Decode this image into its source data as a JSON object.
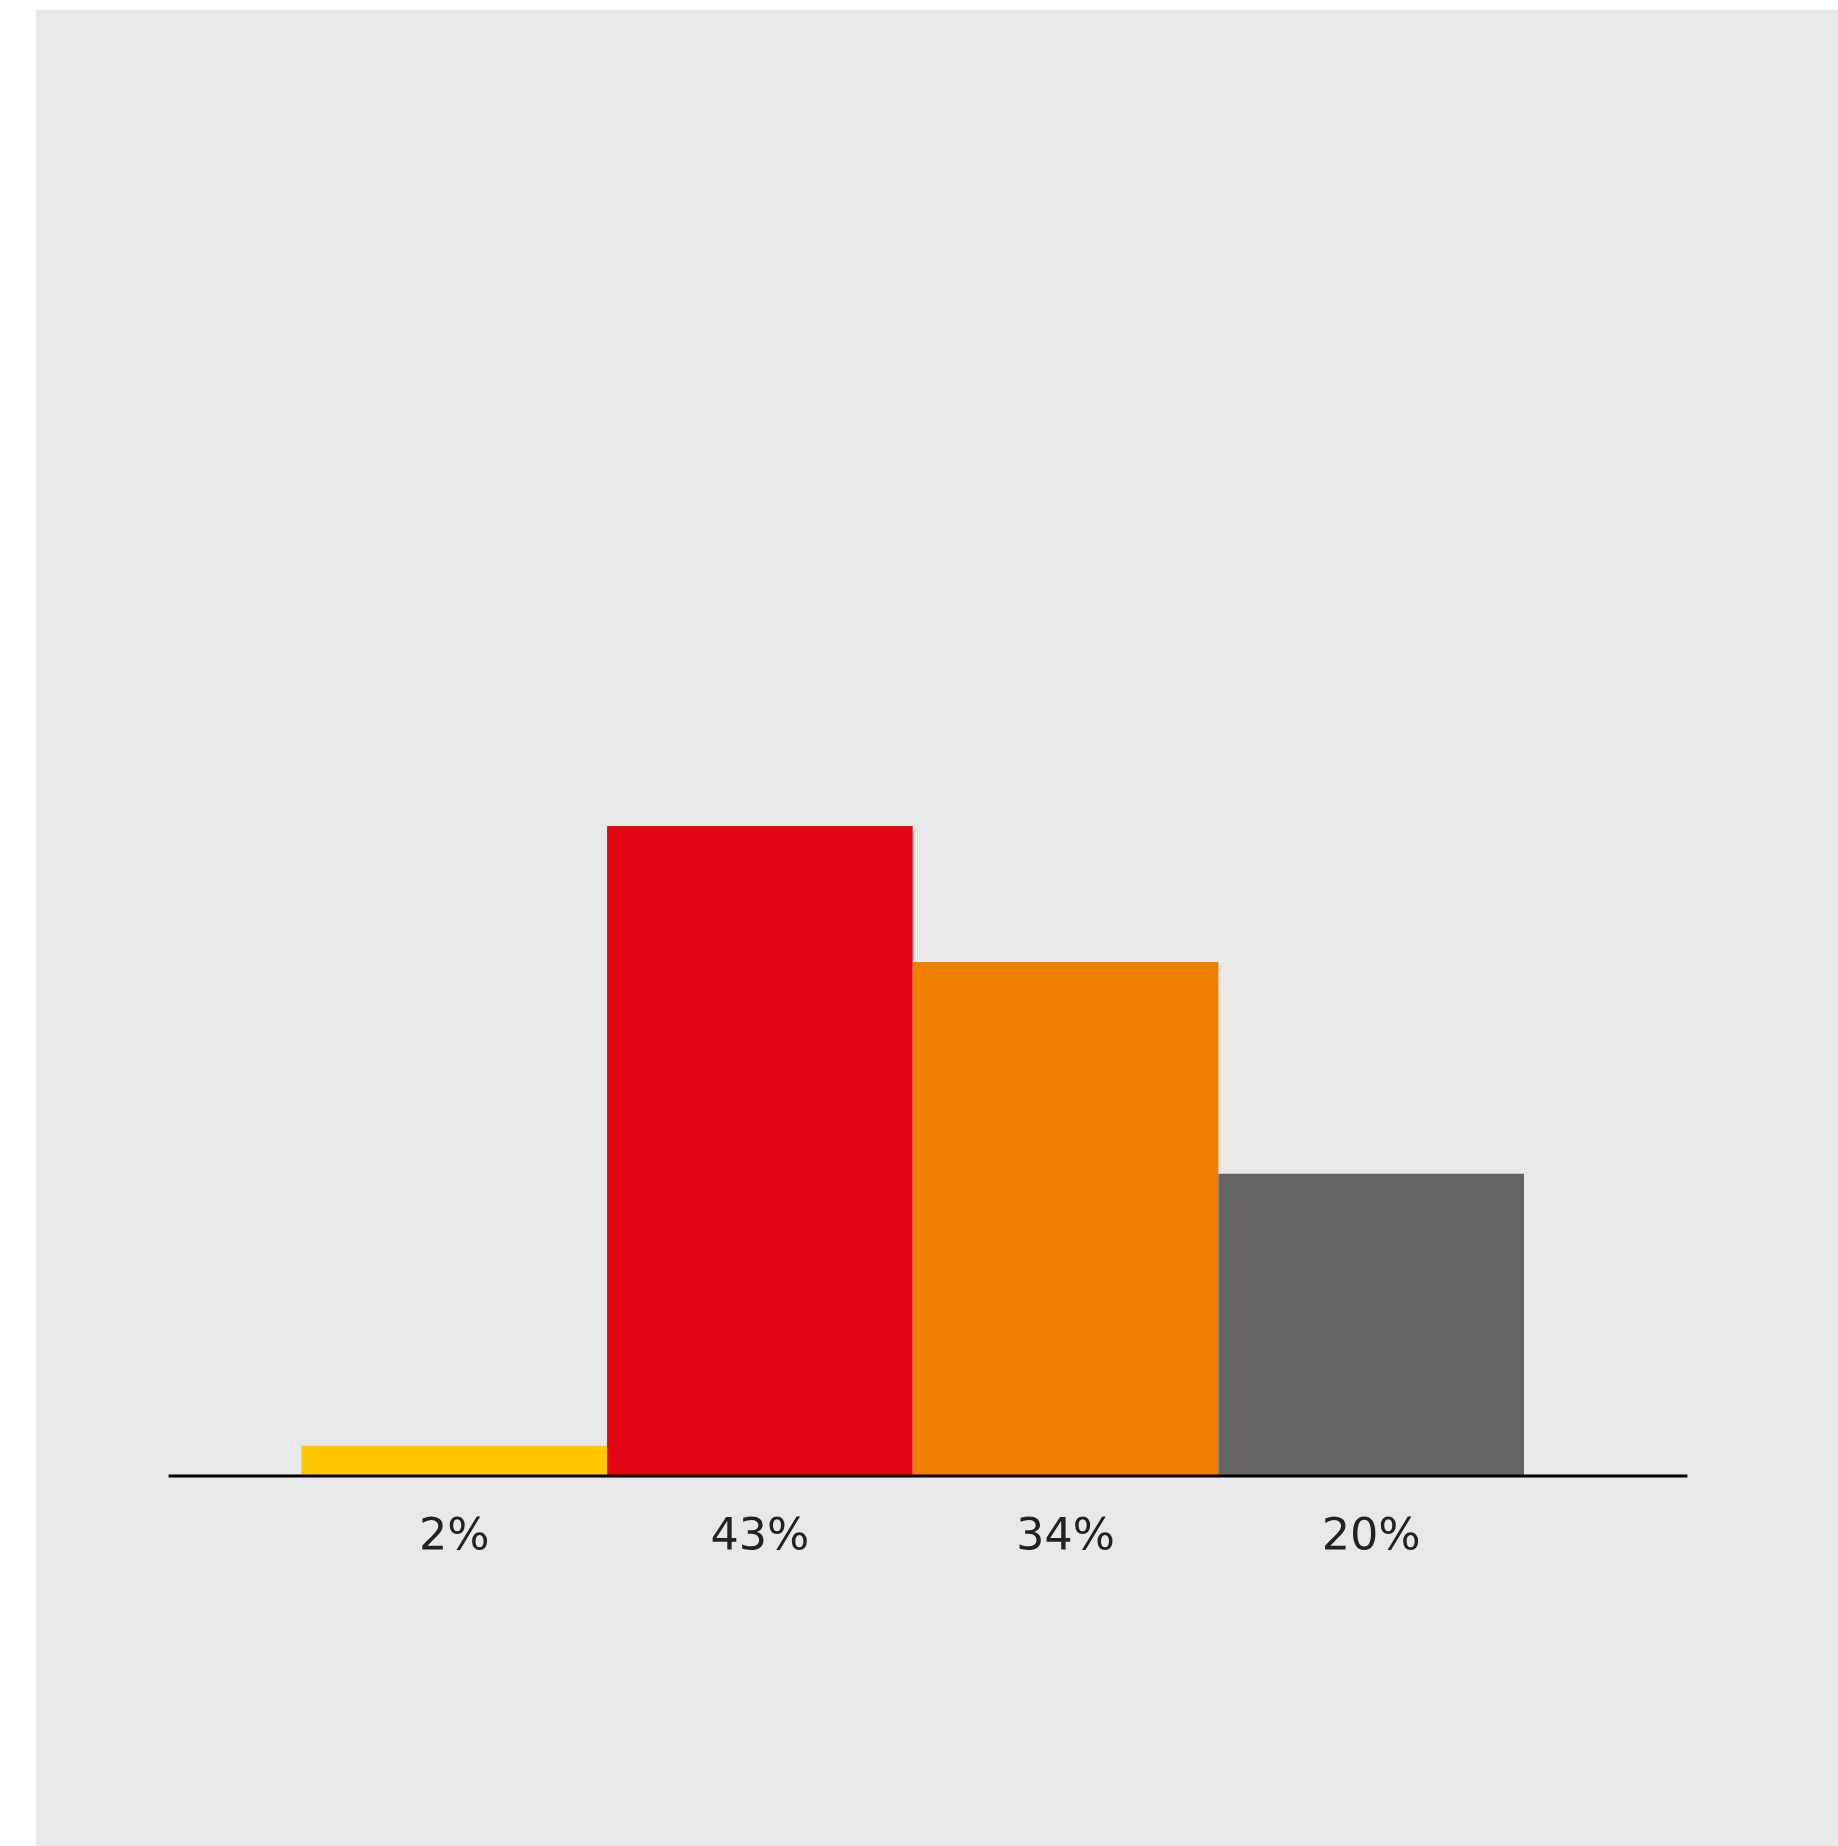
{
  "chart_data": {
    "type": "bar",
    "categories": [
      null,
      null,
      null,
      null
    ],
    "values": [
      2,
      43,
      34,
      20
    ],
    "colors": [
      "#fdc800",
      "#e30613",
      "#f07f00",
      "#656565"
    ],
    "value_labels": [
      "2%",
      "43%",
      "34%",
      "20%"
    ]
  }
}
